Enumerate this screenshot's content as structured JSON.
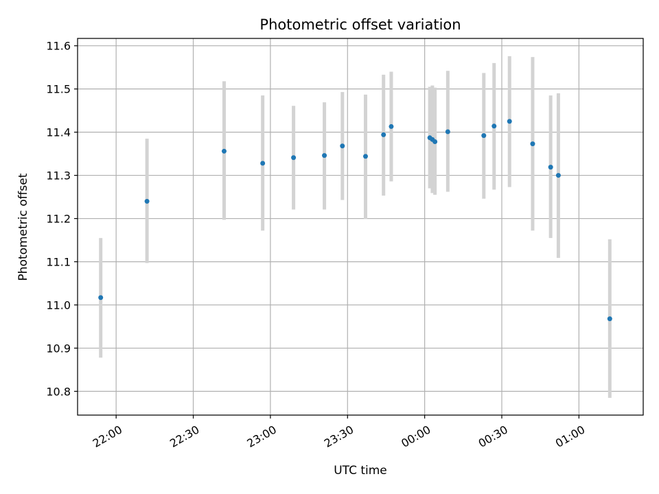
{
  "chart_data": {
    "type": "scatter",
    "title": "Photometric offset variation",
    "xlabel": "UTC time",
    "ylabel": "Photometric offset",
    "grid": true,
    "colors": {
      "point": "#1f77b4",
      "errorbar": "#d3d3d3",
      "grid": "#b0b0b0"
    },
    "xlim": [
      "2021-01-01 21:45",
      "2021-01-02 01:25"
    ],
    "ylim": [
      10.745,
      11.617
    ],
    "x_ticks": [
      {
        "t": "2021-01-01 22:00",
        "label": "22:00"
      },
      {
        "t": "2021-01-01 22:30",
        "label": "22:30"
      },
      {
        "t": "2021-01-01 23:00",
        "label": "23:00"
      },
      {
        "t": "2021-01-01 23:30",
        "label": "23:30"
      },
      {
        "t": "2021-01-02 00:00",
        "label": "00:00"
      },
      {
        "t": "2021-01-02 00:30",
        "label": "00:30"
      },
      {
        "t": "2021-01-02 01:00",
        "label": "01:00"
      }
    ],
    "y_ticks": [
      {
        "v": 10.8,
        "label": "10.8"
      },
      {
        "v": 10.9,
        "label": "10.9"
      },
      {
        "v": 11.0,
        "label": "11.0"
      },
      {
        "v": 11.1,
        "label": "11.1"
      },
      {
        "v": 11.2,
        "label": "11.2"
      },
      {
        "v": 11.3,
        "label": "11.3"
      },
      {
        "v": 11.4,
        "label": "11.4"
      },
      {
        "v": 11.5,
        "label": "11.5"
      },
      {
        "v": 11.6,
        "label": "11.6"
      }
    ],
    "points": [
      {
        "t": "2021-01-01 21:54",
        "y": 11.017,
        "lo": 10.878,
        "hi": 11.155
      },
      {
        "t": "2021-01-01 22:12",
        "y": 11.24,
        "lo": 11.097,
        "hi": 11.385
      },
      {
        "t": "2021-01-01 22:42",
        "y": 11.356,
        "lo": 11.197,
        "hi": 11.518
      },
      {
        "t": "2021-01-01 22:57",
        "y": 11.328,
        "lo": 11.172,
        "hi": 11.485
      },
      {
        "t": "2021-01-01 23:09",
        "y": 11.341,
        "lo": 11.221,
        "hi": 11.461
      },
      {
        "t": "2021-01-01 23:21",
        "y": 11.346,
        "lo": 11.221,
        "hi": 11.469
      },
      {
        "t": "2021-01-01 23:28",
        "y": 11.368,
        "lo": 11.243,
        "hi": 11.493
      },
      {
        "t": "2021-01-01 23:37",
        "y": 11.344,
        "lo": 11.199,
        "hi": 11.487
      },
      {
        "t": "2021-01-01 23:44",
        "y": 11.394,
        "lo": 11.253,
        "hi": 11.533
      },
      {
        "t": "2021-01-01 23:47",
        "y": 11.413,
        "lo": 11.286,
        "hi": 11.54
      },
      {
        "t": "2021-01-02 00:02",
        "y": 11.387,
        "lo": 11.27,
        "hi": 11.505
      },
      {
        "t": "2021-01-02 00:03",
        "y": 11.383,
        "lo": 11.259,
        "hi": 11.508
      },
      {
        "t": "2021-01-02 00:04",
        "y": 11.378,
        "lo": 11.255,
        "hi": 11.503
      },
      {
        "t": "2021-01-02 00:09",
        "y": 11.401,
        "lo": 11.262,
        "hi": 11.542
      },
      {
        "t": "2021-01-02 00:23",
        "y": 11.392,
        "lo": 11.246,
        "hi": 11.537
      },
      {
        "t": "2021-01-02 00:27",
        "y": 11.414,
        "lo": 11.267,
        "hi": 11.56
      },
      {
        "t": "2021-01-02 00:33",
        "y": 11.425,
        "lo": 11.273,
        "hi": 11.576
      },
      {
        "t": "2021-01-02 00:42",
        "y": 11.373,
        "lo": 11.172,
        "hi": 11.574
      },
      {
        "t": "2021-01-02 00:49",
        "y": 11.319,
        "lo": 11.155,
        "hi": 11.485
      },
      {
        "t": "2021-01-02 00:52",
        "y": 11.3,
        "lo": 11.109,
        "hi": 11.49
      },
      {
        "t": "2021-01-02 01:12",
        "y": 10.968,
        "lo": 10.785,
        "hi": 11.152
      }
    ]
  }
}
